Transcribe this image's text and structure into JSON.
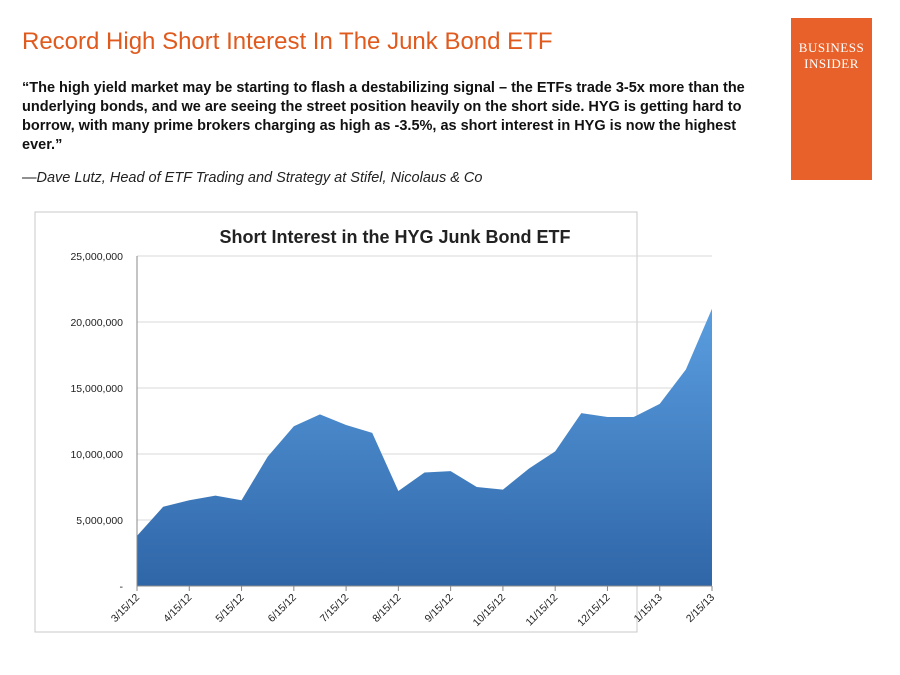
{
  "header": {
    "title": "Record High Short Interest In The Junk Bond ETF",
    "logo": [
      "BUSINESS",
      "INSIDER"
    ]
  },
  "quote": {
    "text": "“The high yield market may be starting to flash a destabilizing signal – the ETFs trade 3-5x more than the underlying bonds, and we are seeing the street position heavily on the short side. HYG is getting hard to borrow, with many prime brokers charging as high as -3.5%, as short interest in HYG is now the highest ever.”",
    "attribution": "—Dave Lutz, Head of ETF Trading and Strategy at Stifel, Nicolaus & Co"
  },
  "chart_data": {
    "type": "area",
    "title": "Short Interest in the HYG Junk Bond ETF",
    "categories": [
      "3/15/12",
      null,
      "4/15/12",
      null,
      "5/15/12",
      null,
      "6/15/12",
      null,
      "7/15/12",
      null,
      "8/15/12",
      null,
      "9/15/12",
      null,
      "10/15/12",
      null,
      "11/15/12",
      null,
      "12/15/12",
      null,
      "1/15/13",
      null,
      "2/15/13"
    ],
    "values": [
      3800000,
      6000000,
      6500000,
      6850000,
      6500000,
      9800000,
      12100000,
      13000000,
      12200000,
      11600000,
      7200000,
      8600000,
      8700000,
      7500000,
      7300000,
      8900000,
      10200000,
      13100000,
      12800000,
      12800000,
      13800000,
      16400000,
      21000000
    ],
    "color": "#4a8ad0",
    "ylim": [
      0,
      25000000
    ],
    "yticks": [
      {
        "value": 0,
        "label": "-"
      },
      {
        "value": 5000000,
        "label": "5,000,000"
      },
      {
        "value": 10000000,
        "label": "10,000,000"
      },
      {
        "value": 15000000,
        "label": "15,000,000"
      },
      {
        "value": 20000000,
        "label": "20,000,000"
      },
      {
        "value": 25000000,
        "label": "25,000,000"
      }
    ],
    "grid": true
  }
}
